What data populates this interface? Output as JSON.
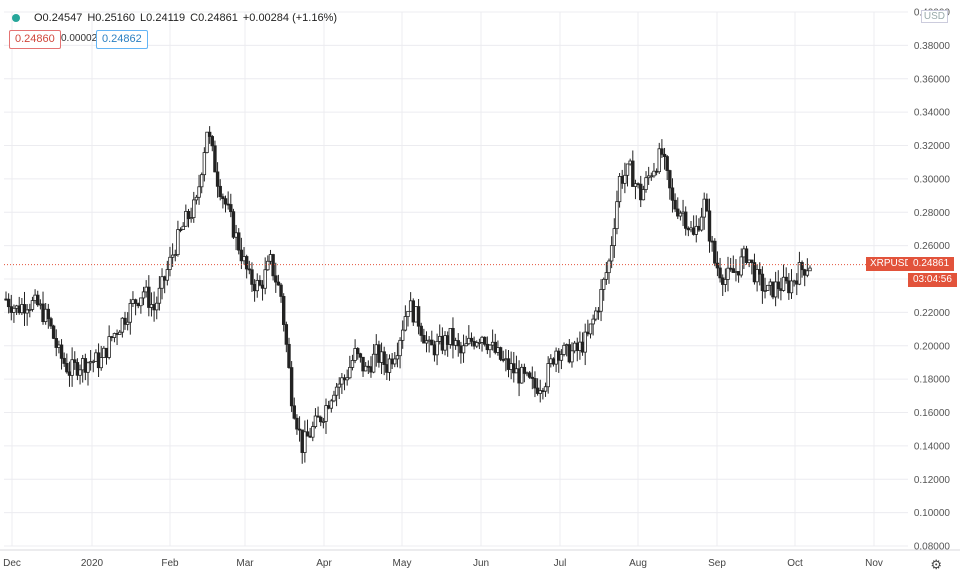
{
  "symbol": "XRPUSD",
  "ohlc": {
    "open": "O0.24547",
    "high": "H0.25160",
    "low": "L0.24119",
    "close": "C0.24861",
    "change": "+0.00284 (+1.16%)"
  },
  "quote": {
    "bid": "0.24860",
    "spread": "0.00002",
    "ask": "0.24862"
  },
  "currency": "USD",
  "last_price": "0.24861",
  "countdown": "03:04:56",
  "colors": {
    "candle": "#222222",
    "grid": "#ececf0",
    "last_line": "#e2533b",
    "status_dot": "#26a69a"
  },
  "chart_data": {
    "type": "candlestick",
    "interval": "daily",
    "price_scale": {
      "min": 0.08,
      "max": 0.4,
      "ticks": [
        "0.08000",
        "0.10000",
        "0.12000",
        "0.14000",
        "0.16000",
        "0.18000",
        "0.20000",
        "0.22000",
        "0.24000",
        "0.26000",
        "0.28000",
        "0.30000",
        "0.32000",
        "0.34000",
        "0.36000",
        "0.38000",
        "0.40000"
      ]
    },
    "time_scale": [
      "Dec",
      "2020",
      "Feb",
      "Mar",
      "Apr",
      "May",
      "Jun",
      "Jul",
      "Aug",
      "Sep",
      "Oct",
      "Nov"
    ],
    "grid": true,
    "close_path": [
      [
        "Dec",
        0.228
      ],
      [
        "Dec",
        0.222
      ],
      [
        "Dec",
        0.226
      ],
      [
        "Dec",
        0.224
      ],
      [
        "Dec",
        0.215
      ],
      [
        "Dec",
        0.195
      ],
      [
        "Dec",
        0.185
      ],
      [
        "Dec",
        0.189
      ],
      [
        "Dec",
        0.191
      ],
      [
        "2020",
        0.191
      ],
      [
        "2020",
        0.205
      ],
      [
        "2020",
        0.215
      ],
      [
        "2020",
        0.225
      ],
      [
        "2020",
        0.233
      ],
      [
        "2020",
        0.222
      ],
      [
        "2020",
        0.24
      ],
      [
        "Feb",
        0.26
      ],
      [
        "Feb",
        0.275
      ],
      [
        "Feb",
        0.285
      ],
      [
        "Feb",
        0.33
      ],
      [
        "Feb",
        0.3
      ],
      [
        "Feb",
        0.28
      ],
      [
        "Feb",
        0.26
      ],
      [
        "Mar",
        0.24
      ],
      [
        "Mar",
        0.235
      ],
      [
        "Mar",
        0.25
      ],
      [
        "Mar",
        0.23
      ],
      [
        "Mar",
        0.17
      ],
      [
        "Mar",
        0.14
      ],
      [
        "Mar",
        0.15
      ],
      [
        "Mar",
        0.16
      ],
      [
        "Apr",
        0.175
      ],
      [
        "Apr",
        0.18
      ],
      [
        "Apr",
        0.195
      ],
      [
        "Apr",
        0.185
      ],
      [
        "Apr",
        0.195
      ],
      [
        "Apr",
        0.188
      ],
      [
        "May",
        0.2
      ],
      [
        "May",
        0.225
      ],
      [
        "May",
        0.215
      ],
      [
        "May",
        0.198
      ],
      [
        "May",
        0.2
      ],
      [
        "May",
        0.205
      ],
      [
        "May",
        0.195
      ],
      [
        "Jun",
        0.203
      ],
      [
        "Jun",
        0.207
      ],
      [
        "Jun",
        0.198
      ],
      [
        "Jun",
        0.19
      ],
      [
        "Jun",
        0.185
      ],
      [
        "Jun",
        0.18
      ],
      [
        "Jul",
        0.175
      ],
      [
        "Jul",
        0.18
      ],
      [
        "Jul",
        0.198
      ],
      [
        "Jul",
        0.195
      ],
      [
        "Jul",
        0.197
      ],
      [
        "Jul",
        0.205
      ],
      [
        "Jul",
        0.225
      ],
      [
        "Aug",
        0.25
      ],
      [
        "Aug",
        0.3
      ],
      [
        "Aug",
        0.305
      ],
      [
        "Aug",
        0.29
      ],
      [
        "Aug",
        0.305
      ],
      [
        "Aug",
        0.315
      ],
      [
        "Aug",
        0.285
      ],
      [
        "Aug",
        0.28
      ],
      [
        "Sep",
        0.265
      ],
      [
        "Sep",
        0.285
      ],
      [
        "Sep",
        0.25
      ],
      [
        "Sep",
        0.24
      ],
      [
        "Sep",
        0.245
      ],
      [
        "Sep",
        0.255
      ],
      [
        "Sep",
        0.24
      ],
      [
        "Sep",
        0.232
      ],
      [
        "Oct",
        0.236
      ],
      [
        "Oct",
        0.236
      ],
      [
        "Oct",
        0.245
      ],
      [
        "Oct",
        0.249
      ]
    ]
  }
}
